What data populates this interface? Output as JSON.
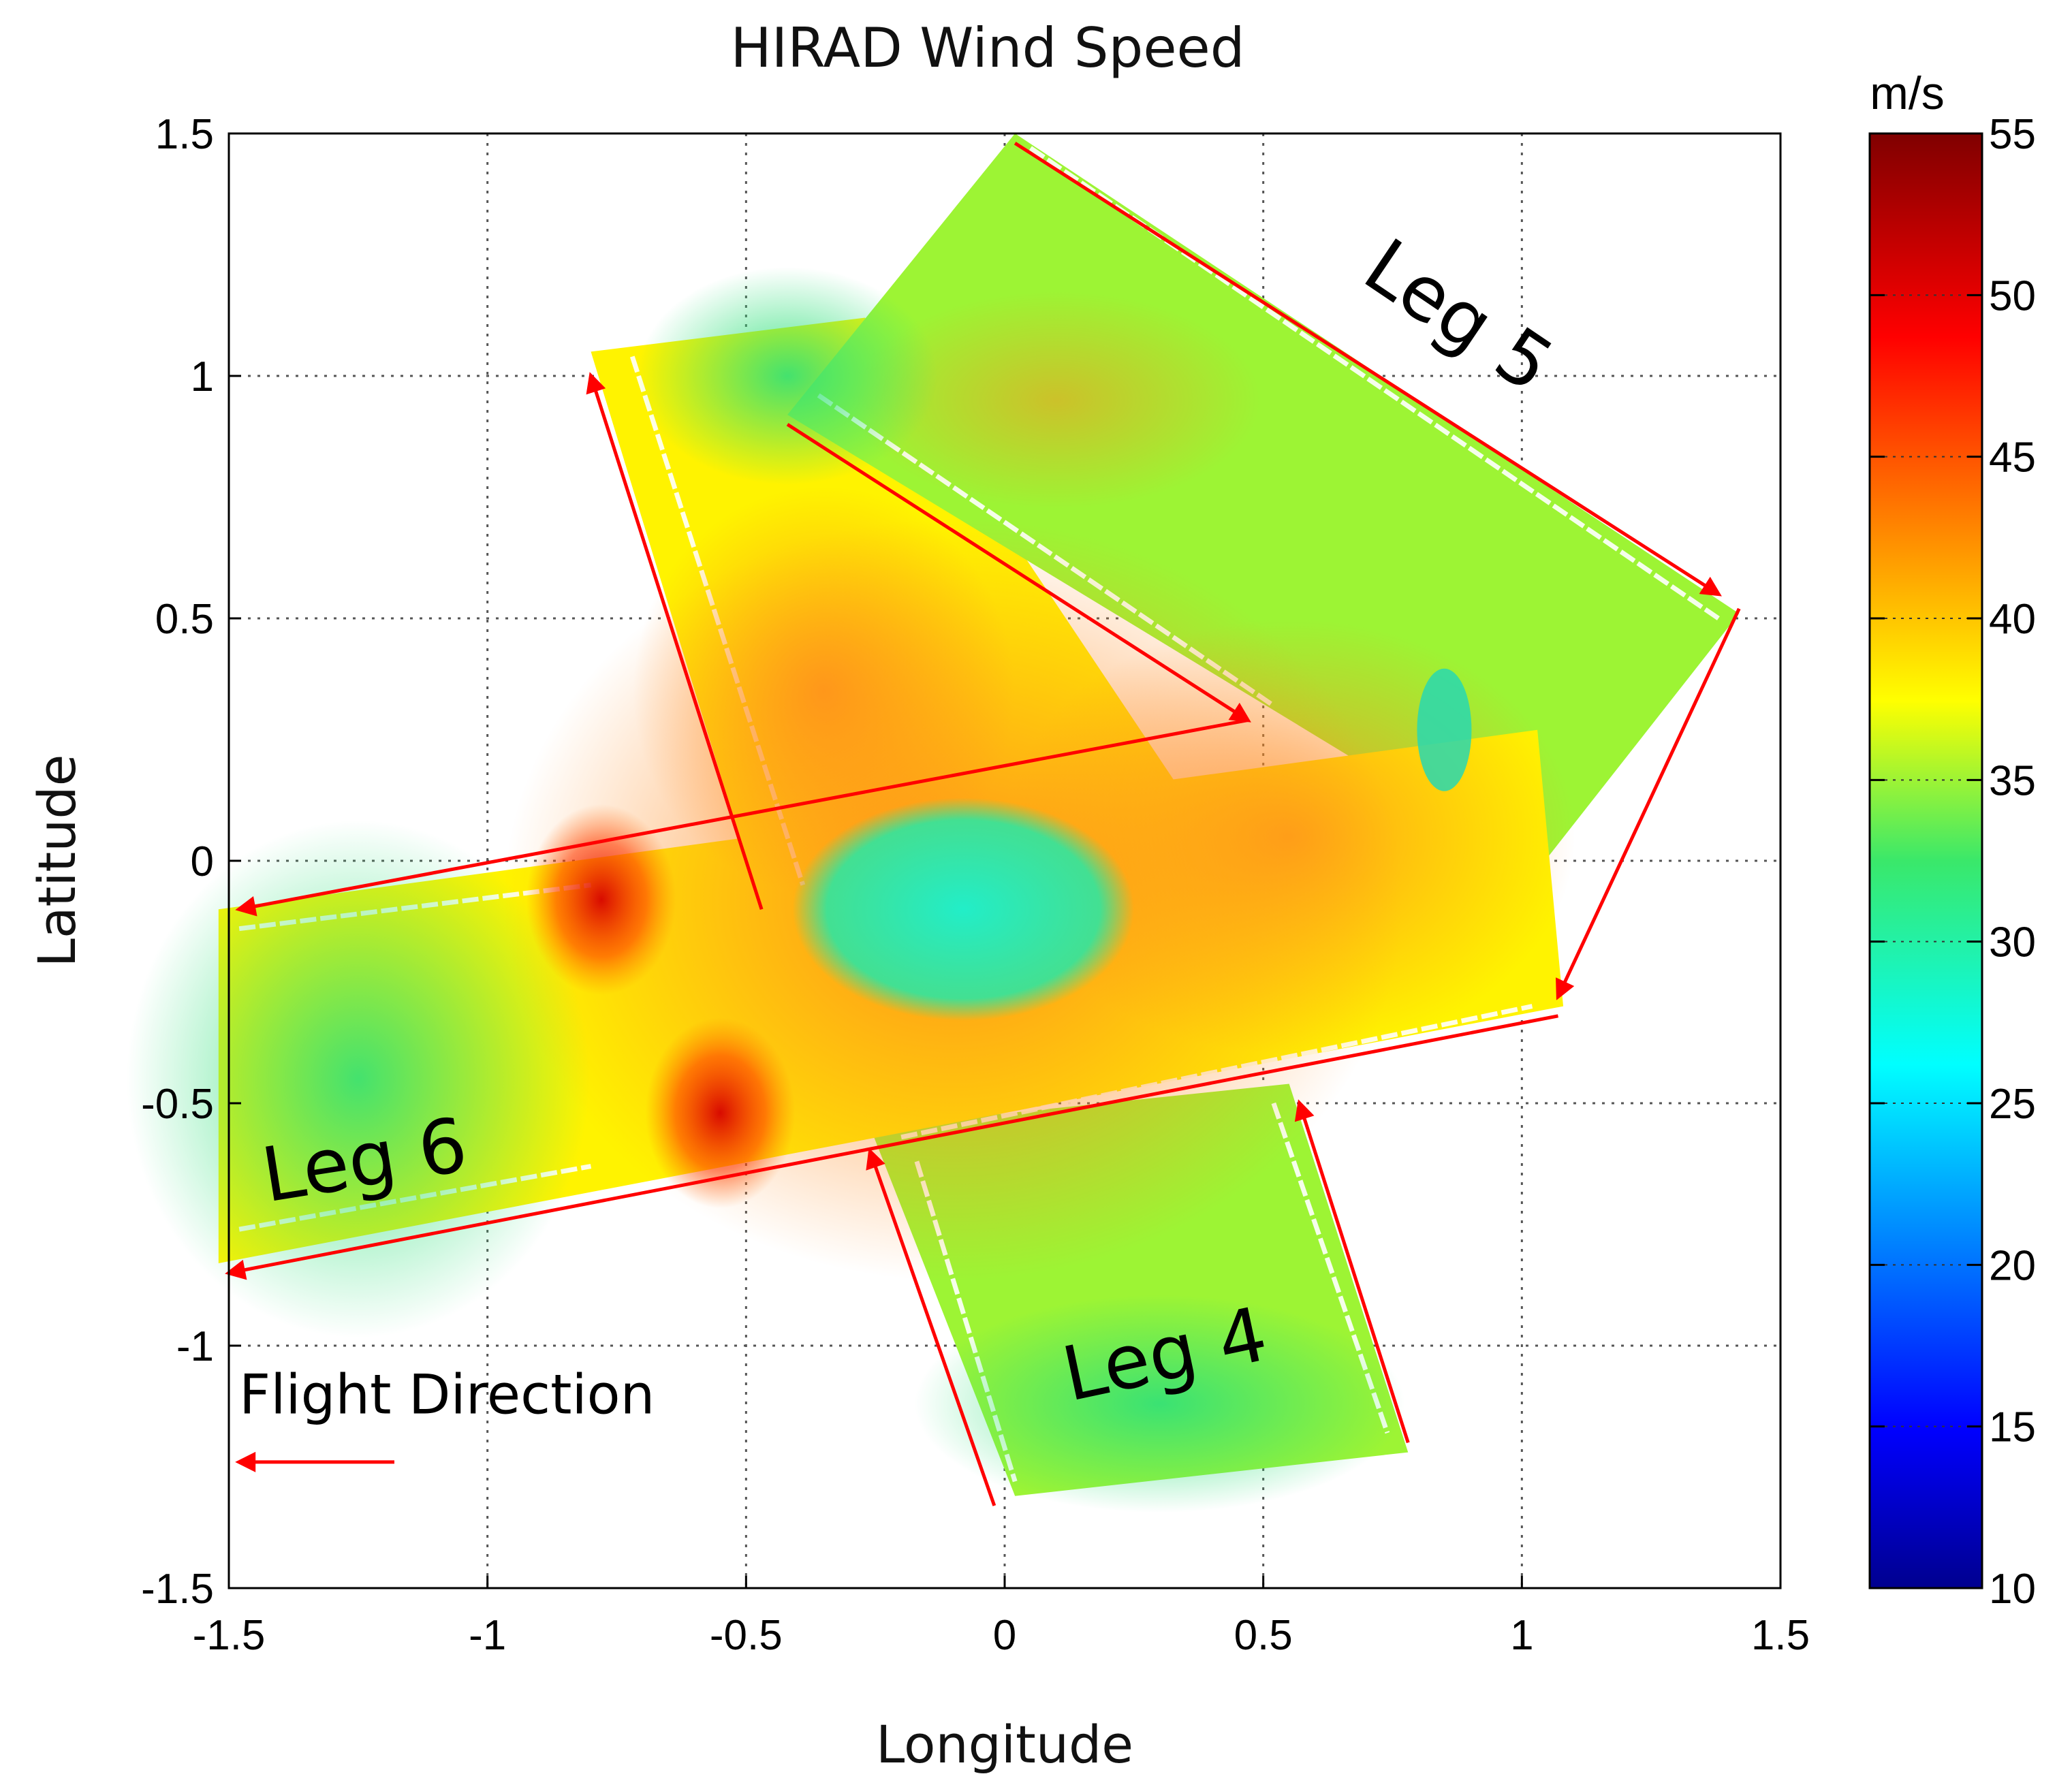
{
  "chart_data": {
    "type": "heatmap",
    "title": "HIRAD Wind Speed",
    "xlabel": "Longitude",
    "ylabel": "Latitude",
    "xlim": [
      -1.5,
      1.5
    ],
    "ylim": [
      -1.5,
      1.5
    ],
    "grid": true,
    "x_ticks": [
      -1.5,
      -1,
      -0.5,
      0,
      0.5,
      1,
      1.5
    ],
    "x_tick_labels": [
      "-1.5",
      "-1",
      "-0.5",
      "0",
      "0.5",
      "1",
      "1.5"
    ],
    "y_ticks": [
      1.5,
      1,
      0.5,
      0,
      -0.5,
      -1,
      -1.5
    ],
    "y_tick_labels": [
      "1.5",
      "1",
      "0.5",
      "0",
      "-0.5",
      "-1",
      "-1.5"
    ],
    "colorbar": {
      "unit_label": "m/s",
      "min": 10,
      "max": 55,
      "ticks": [
        55,
        50,
        45,
        40,
        35,
        30,
        25,
        20,
        15,
        10
      ],
      "tick_labels": [
        "55",
        "50",
        "45",
        "40",
        "35",
        "30",
        "25",
        "20",
        "15",
        "10"
      ],
      "colormap": "jet"
    },
    "swaths": [
      {
        "name": "Leg 4",
        "corners": [
          [
            -0.26,
            -0.55
          ],
          [
            0.55,
            -0.46
          ],
          [
            0.78,
            -1.22
          ],
          [
            0.02,
            -1.31
          ]
        ],
        "typical_speed_ms": 35
      },
      {
        "name": "Leg 5",
        "corners": [
          [
            -0.42,
            0.92
          ],
          [
            0.02,
            1.5
          ],
          [
            1.42,
            0.51
          ],
          [
            1.03,
            -0.02
          ]
        ],
        "typical_speed_ms": 35
      },
      {
        "name": "Leg 6",
        "corners": [
          [
            -1.52,
            -0.1
          ],
          [
            1.03,
            0.27
          ],
          [
            1.08,
            -0.3
          ],
          [
            -1.52,
            -0.83
          ]
        ],
        "typical_speed_ms": 38
      },
      {
        "name": "Leg 4 north",
        "corners": [
          [
            -0.8,
            1.05
          ],
          [
            -0.27,
            1.12
          ],
          [
            0.4,
            0.05
          ],
          [
            -0.47,
            -0.1
          ]
        ],
        "typical_speed_ms": 38
      }
    ],
    "features": [
      {
        "name": "eye",
        "center": [
          -0.08,
          -0.1
        ],
        "radius_lon": 0.33,
        "radius_lat": 0.23,
        "speed_ms": 29
      },
      {
        "name": "eyewall max",
        "center": [
          -0.78,
          -0.08
        ],
        "speed_ms": 51
      },
      {
        "name": "eyewall max",
        "center": [
          -0.55,
          -0.52
        ],
        "speed_ms": 47
      }
    ],
    "flight_tracks": [
      {
        "name": "Leg 4 track",
        "points": [
          [
            0.78,
            -1.2
          ],
          [
            0.57,
            -0.5
          ]
        ],
        "arrow": "end"
      },
      {
        "name": "Leg 4 track",
        "points": [
          [
            -0.02,
            -1.33
          ],
          [
            -0.26,
            -0.6
          ]
        ],
        "arrow": "end"
      },
      {
        "name": "Leg 4 track",
        "points": [
          [
            -0.47,
            -0.1
          ],
          [
            -0.8,
            1.0
          ]
        ],
        "arrow": "end"
      },
      {
        "name": "Leg 5 track",
        "points": [
          [
            0.02,
            1.48
          ],
          [
            1.38,
            0.55
          ]
        ],
        "arrow": "end"
      },
      {
        "name": "Leg 5 track",
        "points": [
          [
            -0.42,
            0.9
          ],
          [
            0.47,
            0.29
          ]
        ],
        "arrow": "end"
      },
      {
        "name": "Leg 6 track",
        "points": [
          [
            0.47,
            0.29
          ],
          [
            -1.48,
            -0.1
          ]
        ],
        "arrow": "end"
      },
      {
        "name": "Leg 6 track",
        "points": [
          [
            1.07,
            -0.32
          ],
          [
            -1.5,
            -0.85
          ]
        ],
        "arrow": "end"
      },
      {
        "name": "transit",
        "points": [
          [
            1.42,
            0.52
          ],
          [
            1.07,
            -0.28
          ]
        ],
        "arrow": "end"
      },
      {
        "name": "flight direction",
        "points": [
          [
            -1.18,
            -1.24
          ],
          [
            -1.48,
            -1.24
          ]
        ],
        "arrow": "end"
      }
    ],
    "annotations": [
      {
        "text": "Leg 5",
        "x": 0.85,
        "y": 1.08,
        "rotation": 34
      },
      {
        "text": "Leg 6",
        "x": -1.23,
        "y": -0.67,
        "rotation": -9
      },
      {
        "text": "Leg 4",
        "x": 0.32,
        "y": -1.07,
        "rotation": -12
      },
      {
        "text": "Flight Direction",
        "x": -1.48,
        "y": -1.14,
        "rotation": 0
      }
    ]
  },
  "colors": {
    "track": "#ff0000",
    "grid": "#555555",
    "axis": "#000000",
    "white_streaks": "#ffffff"
  }
}
